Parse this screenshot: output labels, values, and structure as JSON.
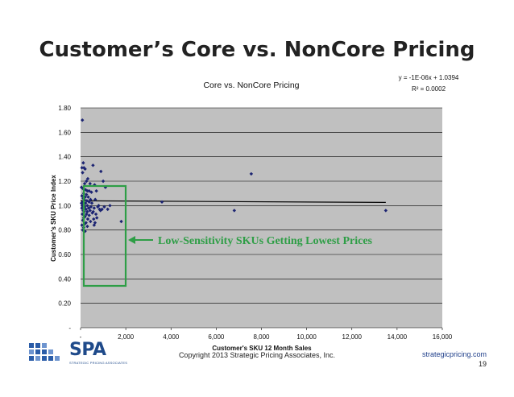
{
  "slide": {
    "title": "Customer’s Core vs. NonCore Pricing",
    "copyright": "Copyright 2013 Strategic Pricing Associates, Inc.",
    "website": "strategicpricing.com",
    "page_number": "19",
    "logo_text": "SPA",
    "logo_subtext": "STRATEGIC PRICING ASSOCIATES"
  },
  "callout": {
    "text": "Low-Sensitivity SKUs Getting Lowest Prices",
    "color": "#2e9e46"
  },
  "colors": {
    "plot_background": "#c0c0c0",
    "marker": "#1c2472",
    "trendline": "#000000",
    "highlight_box": "#2e9e46"
  },
  "chart_data": {
    "type": "scatter",
    "title": "Core vs. NonCore Pricing",
    "xlabel": "Customer's SKU 12 Month Sales",
    "ylabel": "Customer's SKU Price Index",
    "xlim": [
      0,
      16000
    ],
    "ylim": [
      0,
      1.8
    ],
    "xticks": [
      0,
      2000,
      4000,
      6000,
      8000,
      10000,
      12000,
      14000,
      16000
    ],
    "xtick_labels": [
      "-",
      "2,000",
      "4,000",
      "6,000",
      "8,000",
      "10,000",
      "12,000",
      "14,000",
      "16,000"
    ],
    "yticks": [
      0,
      0.2,
      0.4,
      0.6,
      0.8,
      1.0,
      1.2,
      1.4,
      1.6,
      1.8
    ],
    "ytick_labels": [
      "-",
      "0.20",
      "0.40",
      "0.60",
      "0.80",
      "1.00",
      "1.20",
      "1.40",
      "1.60",
      "1.80"
    ],
    "grid": "horizontal",
    "trendline": {
      "equation": "y = -1E-06x + 1.0394",
      "r_squared": "R² = 0.0002",
      "x_range": [
        0,
        13500
      ],
      "y_values": [
        1.0394,
        1.0259
      ]
    },
    "points": [
      [
        80,
        1.7
      ],
      [
        120,
        1.35
      ],
      [
        60,
        1.31
      ],
      [
        200,
        1.3
      ],
      [
        150,
        1.31
      ],
      [
        90,
        1.27
      ],
      [
        320,
        1.22
      ],
      [
        260,
        1.2
      ],
      [
        180,
        1.18
      ],
      [
        420,
        1.18
      ],
      [
        40,
        1.15
      ],
      [
        100,
        1.14
      ],
      [
        220,
        1.13
      ],
      [
        300,
        1.12
      ],
      [
        380,
        1.12
      ],
      [
        480,
        1.11
      ],
      [
        140,
        1.1
      ],
      [
        260,
        1.09
      ],
      [
        60,
        1.08
      ],
      [
        200,
        1.07
      ],
      [
        340,
        1.07
      ],
      [
        120,
        1.06
      ],
      [
        440,
        1.05
      ],
      [
        160,
        1.05
      ],
      [
        280,
        1.04
      ],
      [
        100,
        1.03
      ],
      [
        380,
        1.03
      ],
      [
        40,
        1.02
      ],
      [
        220,
        1.02
      ],
      [
        500,
        1.02
      ],
      [
        140,
        1.01
      ],
      [
        300,
        1.0
      ],
      [
        80,
        1.0
      ],
      [
        460,
        0.99
      ],
      [
        180,
        0.99
      ],
      [
        360,
        0.98
      ],
      [
        60,
        0.98
      ],
      [
        240,
        0.97
      ],
      [
        120,
        0.96
      ],
      [
        420,
        0.96
      ],
      [
        300,
        0.95
      ],
      [
        160,
        0.95
      ],
      [
        520,
        0.94
      ],
      [
        80,
        0.93
      ],
      [
        260,
        0.93
      ],
      [
        380,
        0.92
      ],
      [
        200,
        0.91
      ],
      [
        140,
        0.9
      ],
      [
        320,
        0.89
      ],
      [
        100,
        0.88
      ],
      [
        440,
        0.87
      ],
      [
        240,
        0.86
      ],
      [
        180,
        0.85
      ],
      [
        60,
        0.84
      ],
      [
        300,
        0.83
      ],
      [
        140,
        0.82
      ],
      [
        100,
        0.8
      ],
      [
        200,
        0.79
      ],
      [
        550,
        1.33
      ],
      [
        620,
        1.17
      ],
      [
        700,
        1.12
      ],
      [
        650,
        1.05
      ],
      [
        600,
        0.98
      ],
      [
        560,
        0.95
      ],
      [
        680,
        0.93
      ],
      [
        720,
        0.9
      ],
      [
        580,
        0.89
      ],
      [
        640,
        0.86
      ],
      [
        600,
        0.84
      ],
      [
        760,
        0.99
      ],
      [
        800,
        1.0
      ],
      [
        840,
        0.97
      ],
      [
        880,
        0.96
      ],
      [
        900,
        1.28
      ],
      [
        1000,
        1.2
      ],
      [
        1100,
        1.15
      ],
      [
        950,
        0.97
      ],
      [
        1050,
        0.99
      ],
      [
        1200,
        0.97
      ],
      [
        1300,
        1.0
      ],
      [
        1800,
        0.87
      ],
      [
        3600,
        1.03
      ],
      [
        6800,
        0.96
      ],
      [
        7550,
        1.26
      ],
      [
        13500,
        0.96
      ]
    ]
  }
}
